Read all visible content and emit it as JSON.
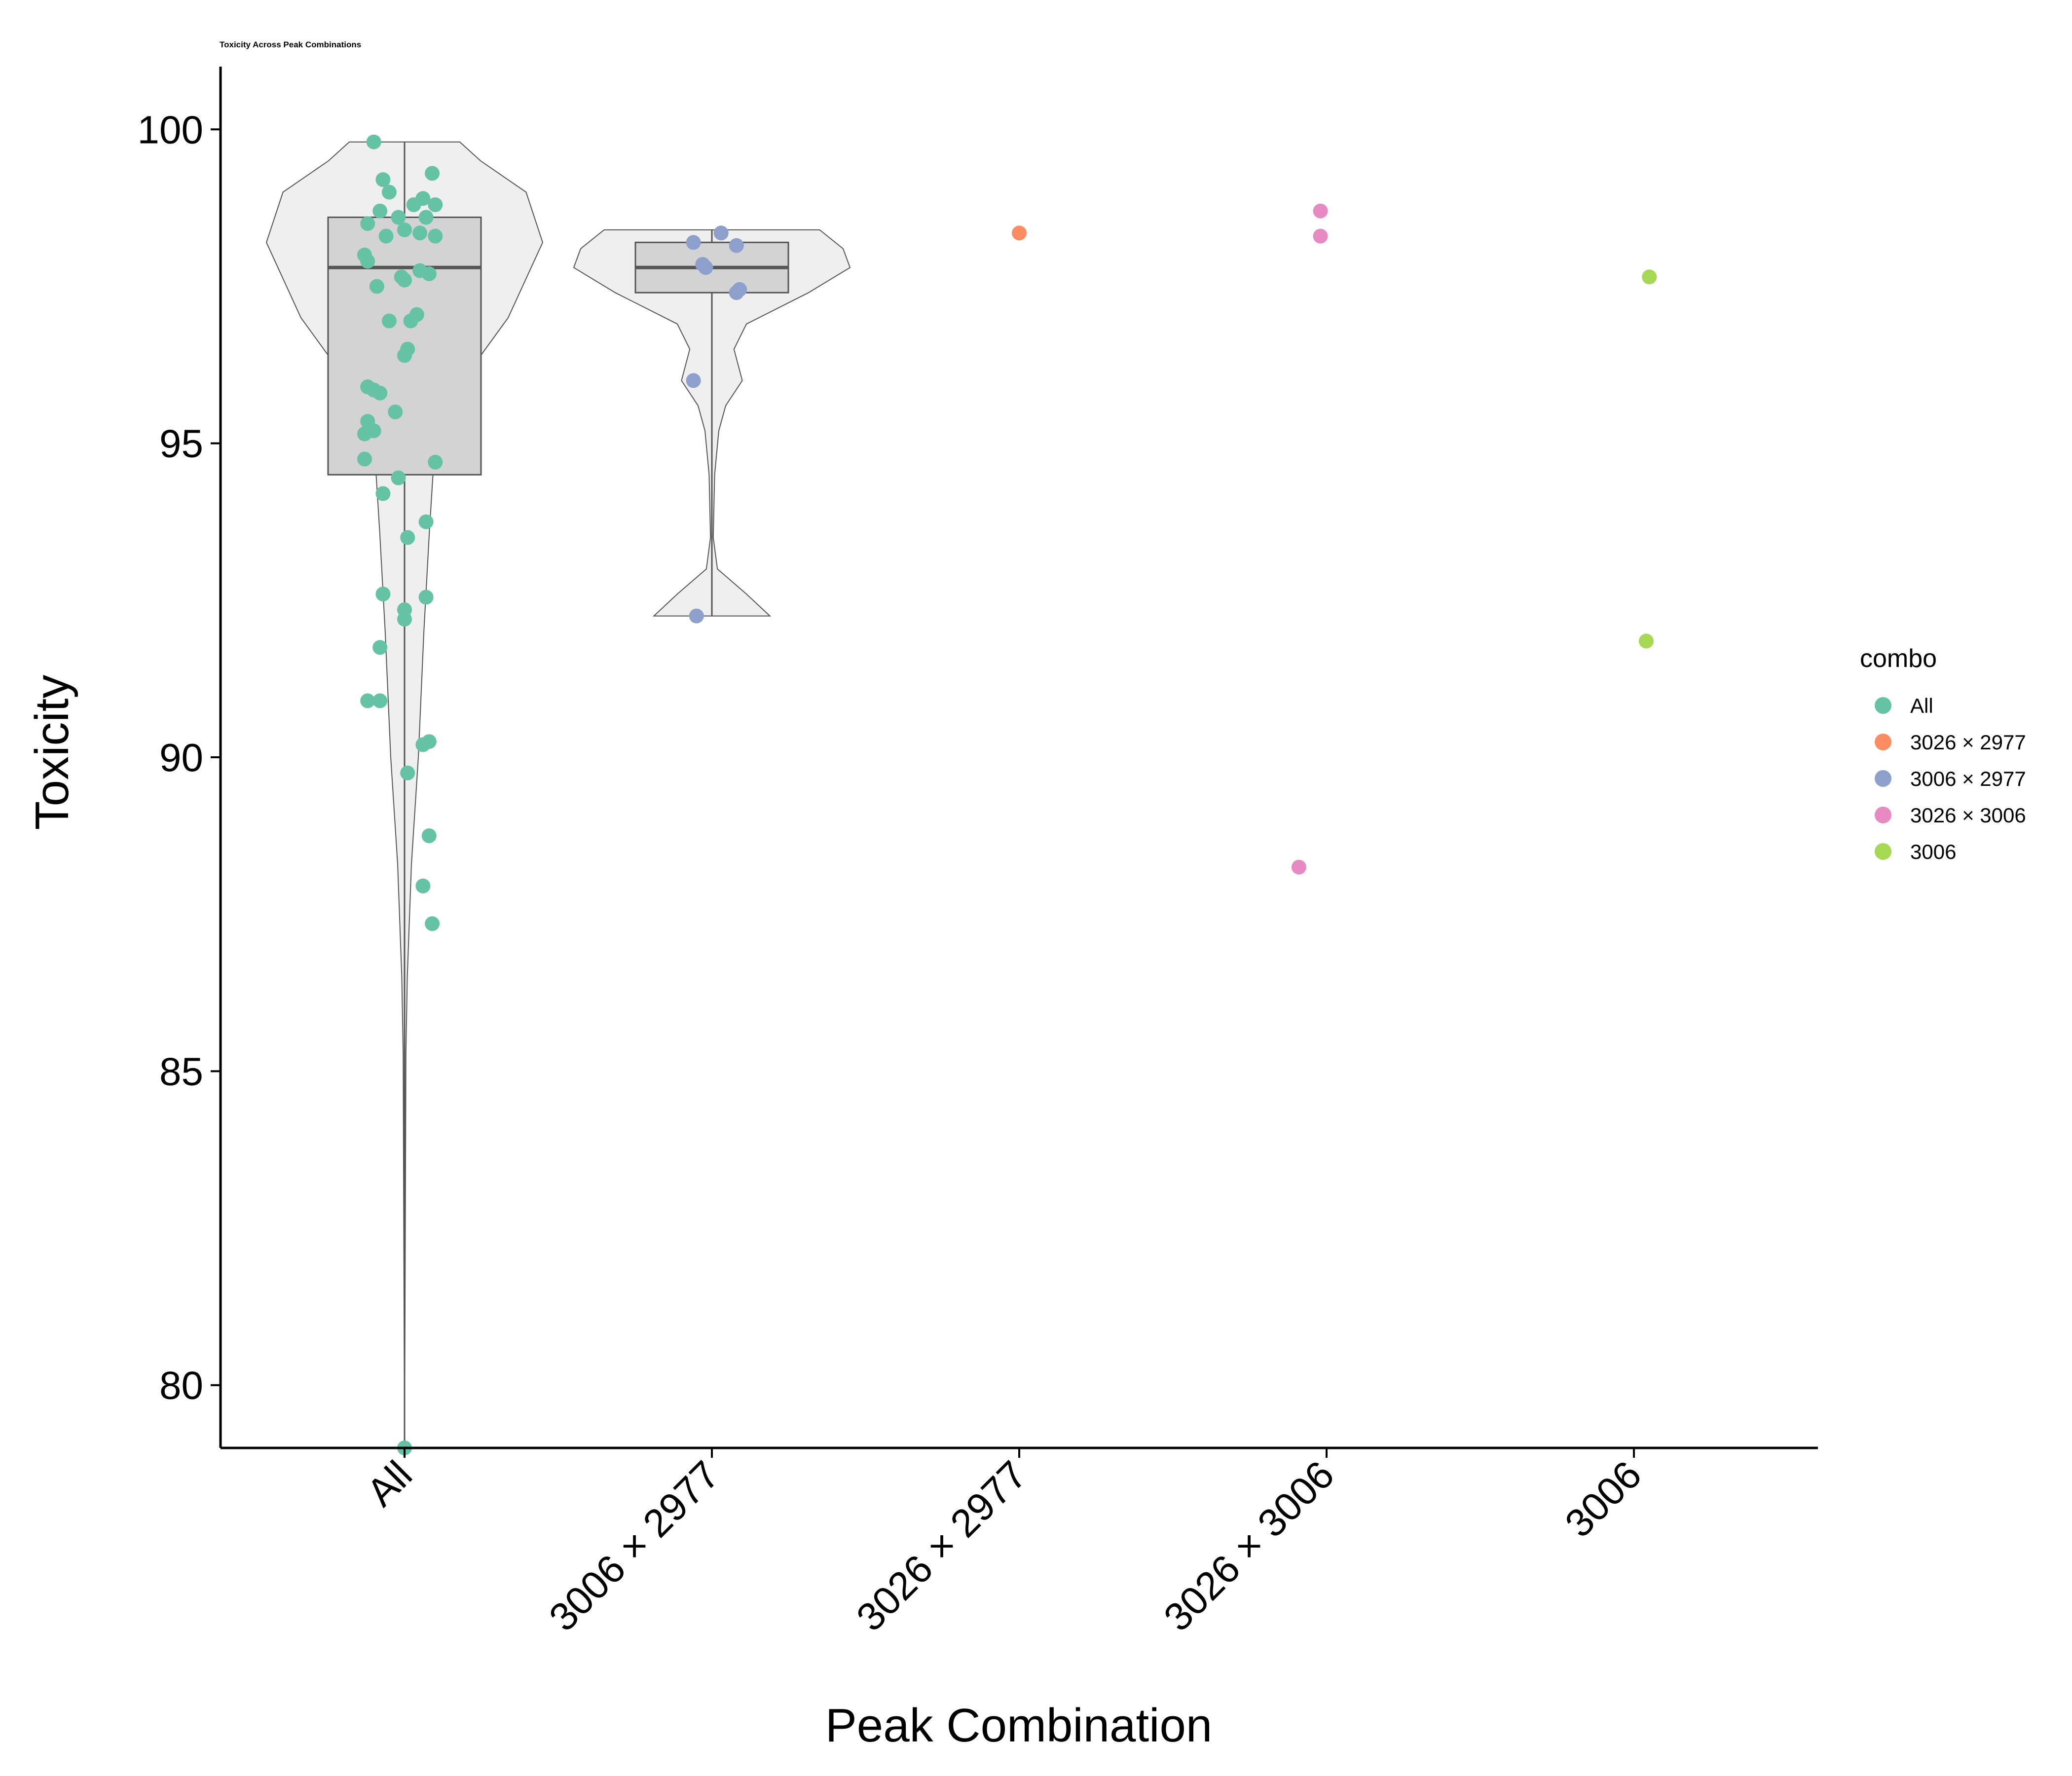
{
  "chart_data": {
    "type": "violin-box-jitter",
    "title": "Toxicity Across Peak Combinations",
    "xlabel": "Peak Combination",
    "ylabel": "Toxicity",
    "ylim": [
      79,
      101
    ],
    "yticks": [
      80,
      85,
      90,
      95,
      100
    ],
    "categories": [
      "All",
      "3006 × 2977",
      "3026 × 2977",
      "3026 × 3006",
      "3006"
    ],
    "legend": {
      "title": "combo",
      "position": "right",
      "items": [
        {
          "label": "All",
          "color": "#66C2A5"
        },
        {
          "label": "3026 × 2977",
          "color": "#FC8D62"
        },
        {
          "label": "3006 × 2977",
          "color": "#8DA0CB"
        },
        {
          "label": "3026 × 3006",
          "color": "#E78AC3"
        },
        {
          "label": "3006",
          "color": "#A6D854"
        }
      ]
    },
    "series": [
      {
        "name": "All",
        "category": "All",
        "color": "#66C2A5",
        "box": {
          "q1": 94.5,
          "median": 97.8,
          "q3": 98.6,
          "whisker_low": 79,
          "whisker_high": 99.8
        },
        "violin": {
          "ymin": 79,
          "ymax": 99.8,
          "profile": [
            [
              79.0,
              0.0
            ],
            [
              85.3,
              0.01
            ],
            [
              86.5,
              0.02
            ],
            [
              88.3,
              0.05
            ],
            [
              90.0,
              0.1
            ],
            [
              92.0,
              0.14
            ],
            [
              93.6,
              0.18
            ],
            [
              95.0,
              0.22
            ],
            [
              96.0,
              0.42
            ],
            [
              97.0,
              0.75
            ],
            [
              98.2,
              1.0
            ],
            [
              99.0,
              0.88
            ],
            [
              99.5,
              0.55
            ],
            [
              99.8,
              0.4
            ]
          ]
        },
        "points": [
          {
            "x": -0.1,
            "y": 99.8
          },
          {
            "x": -0.07,
            "y": 99.2
          },
          {
            "x": 0.09,
            "y": 99.3
          },
          {
            "x": -0.05,
            "y": 99.0
          },
          {
            "x": 0.06,
            "y": 98.9
          },
          {
            "x": 0.1,
            "y": 98.8
          },
          {
            "x": -0.08,
            "y": 98.7
          },
          {
            "x": 0.03,
            "y": 98.8
          },
          {
            "x": -0.02,
            "y": 98.6
          },
          {
            "x": 0.07,
            "y": 98.6
          },
          {
            "x": -0.12,
            "y": 98.5
          },
          {
            "x": 0.0,
            "y": 98.4
          },
          {
            "x": 0.05,
            "y": 98.35
          },
          {
            "x": 0.1,
            "y": 98.3
          },
          {
            "x": -0.06,
            "y": 98.3
          },
          {
            "x": -0.13,
            "y": 98.0
          },
          {
            "x": -0.12,
            "y": 97.9
          },
          {
            "x": 0.08,
            "y": 97.7
          },
          {
            "x": 0.05,
            "y": 97.75
          },
          {
            "x": -0.01,
            "y": 97.65
          },
          {
            "x": 0.0,
            "y": 97.6
          },
          {
            "x": -0.09,
            "y": 97.5
          },
          {
            "x": 0.04,
            "y": 97.05
          },
          {
            "x": -0.05,
            "y": 96.95
          },
          {
            "x": 0.02,
            "y": 96.95
          },
          {
            "x": 0.01,
            "y": 96.5
          },
          {
            "x": 0.0,
            "y": 96.4
          },
          {
            "x": -0.12,
            "y": 95.9
          },
          {
            "x": -0.1,
            "y": 95.85
          },
          {
            "x": -0.08,
            "y": 95.8
          },
          {
            "x": -0.03,
            "y": 95.5
          },
          {
            "x": -0.12,
            "y": 95.35
          },
          {
            "x": -0.13,
            "y": 95.15
          },
          {
            "x": -0.1,
            "y": 95.2
          },
          {
            "x": -0.13,
            "y": 94.75
          },
          {
            "x": 0.1,
            "y": 94.7
          },
          {
            "x": -0.02,
            "y": 94.45
          },
          {
            "x": -0.07,
            "y": 94.2
          },
          {
            "x": 0.07,
            "y": 93.75
          },
          {
            "x": 0.01,
            "y": 93.5
          },
          {
            "x": -0.07,
            "y": 92.6
          },
          {
            "x": 0.07,
            "y": 92.55
          },
          {
            "x": 0.0,
            "y": 92.35
          },
          {
            "x": 0.0,
            "y": 92.2
          },
          {
            "x": -0.08,
            "y": 91.75
          },
          {
            "x": -0.12,
            "y": 90.9
          },
          {
            "x": -0.08,
            "y": 90.9
          },
          {
            "x": 0.08,
            "y": 90.25
          },
          {
            "x": 0.06,
            "y": 90.2
          },
          {
            "x": 0.01,
            "y": 89.75
          },
          {
            "x": 0.08,
            "y": 88.75
          },
          {
            "x": 0.06,
            "y": 87.95
          },
          {
            "x": 0.09,
            "y": 87.35
          },
          {
            "x": 0.0,
            "y": 79.0
          }
        ]
      },
      {
        "name": "3006 × 2977",
        "category": "3006 × 2977",
        "color": "#8DA0CB",
        "box": {
          "q1": 97.4,
          "median": 97.8,
          "q3": 98.2,
          "whisker_low": 92.25,
          "whisker_high": 98.4
        },
        "violin": {
          "ymin": 92.25,
          "ymax": 98.4,
          "profile": [
            [
              92.25,
              0.42
            ],
            [
              92.6,
              0.25
            ],
            [
              93.0,
              0.04
            ],
            [
              93.5,
              0.01
            ],
            [
              94.5,
              0.02
            ],
            [
              95.2,
              0.05
            ],
            [
              95.6,
              0.1
            ],
            [
              96.0,
              0.22
            ],
            [
              96.5,
              0.16
            ],
            [
              96.9,
              0.25
            ],
            [
              97.4,
              0.7
            ],
            [
              97.8,
              1.0
            ],
            [
              98.1,
              0.95
            ],
            [
              98.4,
              0.78
            ]
          ]
        },
        "points": [
          {
            "x": -0.06,
            "y": 98.2
          },
          {
            "x": 0.03,
            "y": 98.35
          },
          {
            "x": 0.08,
            "y": 98.15
          },
          {
            "x": -0.03,
            "y": 97.85
          },
          {
            "x": -0.02,
            "y": 97.8
          },
          {
            "x": 0.09,
            "y": 97.45
          },
          {
            "x": 0.08,
            "y": 97.4
          },
          {
            "x": -0.06,
            "y": 96.0
          },
          {
            "x": -0.05,
            "y": 92.25
          }
        ]
      },
      {
        "name": "3026 × 2977",
        "category": "3026 × 2977",
        "color": "#FC8D62",
        "points": [
          {
            "x": 0.0,
            "y": 98.35
          }
        ]
      },
      {
        "name": "3026 × 3006",
        "category": "3026 × 3006",
        "color": "#E78AC3",
        "points": [
          {
            "x": -0.02,
            "y": 98.7
          },
          {
            "x": -0.02,
            "y": 98.3
          },
          {
            "x": -0.09,
            "y": 88.25
          }
        ]
      },
      {
        "name": "3006",
        "category": "3006",
        "color": "#A6D854",
        "points": [
          {
            "x": 0.05,
            "y": 97.65
          },
          {
            "x": 0.04,
            "y": 91.85
          }
        ]
      }
    ]
  }
}
